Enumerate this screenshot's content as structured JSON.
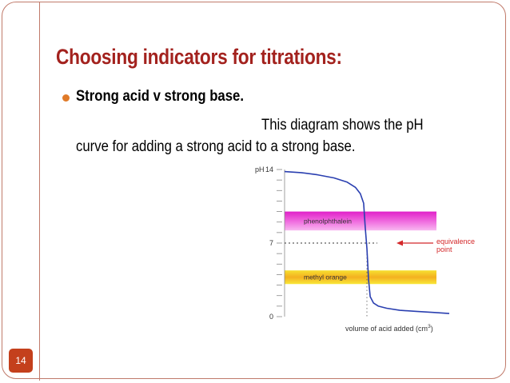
{
  "slide": {
    "title": "Choosing indicators for titrations:",
    "bullet": "Strong acid v strong base.",
    "description_line1": "This diagram shows the pH",
    "description_line2": "curve for adding a strong acid to a strong base.",
    "page_number": "14"
  },
  "colors": {
    "title": "#a3221e",
    "bullet": "#e07a28",
    "page_badge": "#c4401c",
    "frame": "#c07a6a",
    "curve": "#2a3fb0",
    "annotation": "#d4282a",
    "phenolphthalein_band": [
      "#e020c8",
      "#f4a0ec"
    ],
    "methyl_orange_band": [
      "#f0a018",
      "#f8e030"
    ]
  },
  "chart_data": {
    "type": "line",
    "title": "",
    "ylabel": "pH",
    "xlabel": "volume of acid added (cm",
    "xlabel_superscript": "3",
    "xlabel_suffix": ")",
    "ylim": [
      0,
      14
    ],
    "y_ticks_labeled": [
      "0",
      "7",
      "14"
    ],
    "y_tick_values": [
      0,
      1,
      2,
      3,
      4,
      5,
      6,
      7,
      8,
      9,
      10,
      11,
      12,
      13,
      14
    ],
    "xlim": [
      0,
      10
    ],
    "series": [
      {
        "x": [
          0,
          1,
          2,
          3,
          3.8,
          4.3,
          4.6,
          4.8,
          4.9,
          5.0,
          5.1,
          5.2,
          5.4,
          5.7,
          6.2,
          7.0,
          8.0,
          9.0,
          10.0
        ],
        "y": [
          13.8,
          13.7,
          13.5,
          13.2,
          12.8,
          12.3,
          11.7,
          10.8,
          8.5,
          6.5,
          3.5,
          1.9,
          1.3,
          1.0,
          0.8,
          0.6,
          0.5,
          0.4,
          0.3
        ]
      }
    ],
    "bands": [
      {
        "label": "phenolphthalein",
        "y_from": 8.2,
        "y_to": 10.0
      },
      {
        "label": "methyl orange",
        "y_from": 3.1,
        "y_to": 4.4
      }
    ],
    "equivalence": {
      "x": 5.0,
      "y": 7
    },
    "annotation": {
      "line1": "equivalence",
      "line2": "point"
    }
  }
}
